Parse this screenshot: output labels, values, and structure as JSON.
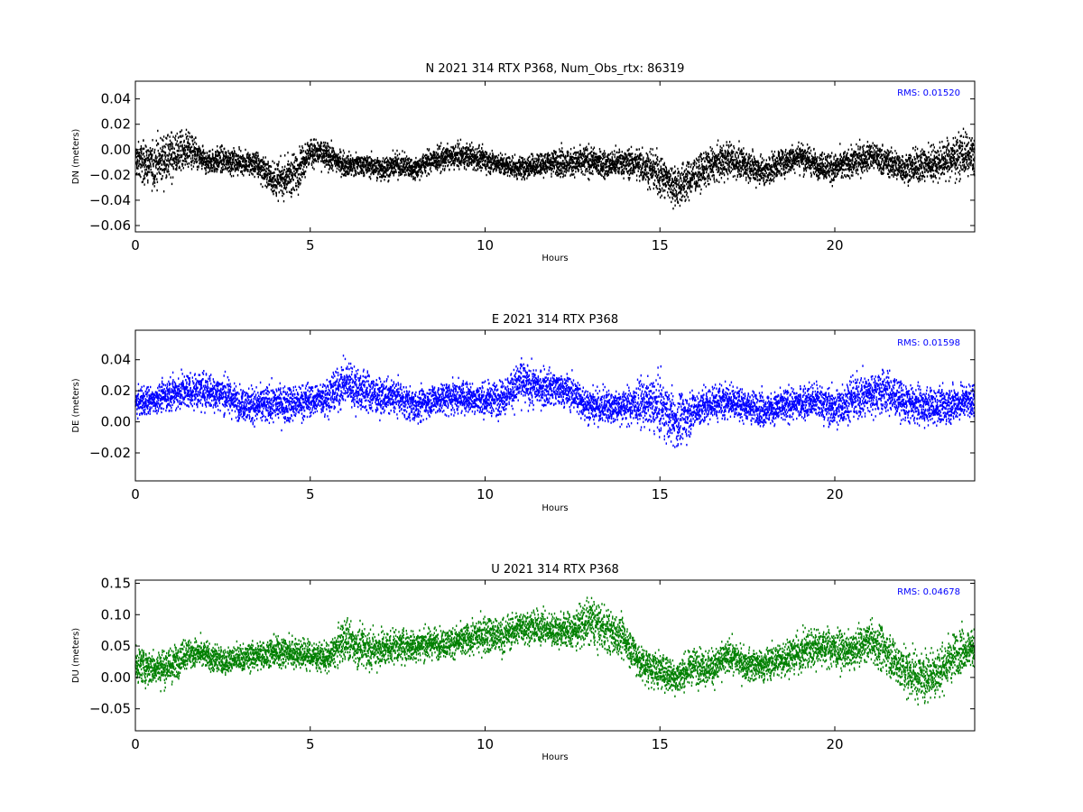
{
  "chart_data": [
    {
      "type": "scatter",
      "title": "N 2021 314 RTX  P368, Num_Obs_rtx: 86319",
      "xlabel": "Hours",
      "ylabel": "DN (meters)",
      "xlim": [
        0,
        24
      ],
      "ylim": [
        -0.065,
        0.054
      ],
      "xticks": [
        0,
        5,
        10,
        15,
        20
      ],
      "xtick_labels": [
        "0",
        "5",
        "10",
        "15",
        "20"
      ],
      "yticks": [
        -0.06,
        -0.04,
        -0.02,
        0.0,
        0.02,
        0.04
      ],
      "ytick_labels": [
        "−0.06",
        "−0.04",
        "−0.02",
        "0.00",
        "0.02",
        "0.04"
      ],
      "color": "#000000",
      "annotation": "RMS:  0.01520",
      "annotation_color": "#0000ff",
      "grid": false,
      "series": [
        {
          "x": [
            0,
            0.5,
            1,
            1.5,
            2,
            2.5,
            3,
            3.5,
            4,
            4.5,
            5,
            5.5,
            6,
            6.5,
            7,
            7.5,
            8,
            8.5,
            9,
            9.5,
            10,
            10.5,
            11,
            11.5,
            12,
            12.5,
            13,
            13.5,
            14,
            14.5,
            15,
            15.5,
            16,
            16.5,
            17,
            17.5,
            18,
            18.5,
            19,
            19.5,
            20,
            20.5,
            21,
            21.5,
            22,
            22.5,
            23,
            23.5,
            24
          ],
          "y": [
            -0.008,
            -0.012,
            -0.005,
            0.0,
            -0.01,
            -0.008,
            -0.01,
            -0.012,
            -0.025,
            -0.02,
            -0.002,
            -0.005,
            -0.012,
            -0.012,
            -0.015,
            -0.012,
            -0.015,
            -0.008,
            -0.006,
            -0.005,
            -0.008,
            -0.012,
            -0.015,
            -0.012,
            -0.01,
            -0.01,
            -0.01,
            -0.012,
            -0.01,
            -0.012,
            -0.02,
            -0.03,
            -0.02,
            -0.012,
            -0.008,
            -0.012,
            -0.018,
            -0.01,
            -0.005,
            -0.012,
            -0.015,
            -0.01,
            -0.005,
            -0.01,
            -0.015,
            -0.012,
            -0.01,
            -0.005,
            -0.005
          ],
          "spread": [
            0.012,
            0.015,
            0.016,
            0.012,
            0.008,
            0.009,
            0.008,
            0.009,
            0.012,
            0.014,
            0.01,
            0.009,
            0.008,
            0.008,
            0.008,
            0.008,
            0.008,
            0.008,
            0.008,
            0.008,
            0.008,
            0.008,
            0.008,
            0.008,
            0.009,
            0.01,
            0.01,
            0.009,
            0.009,
            0.012,
            0.015,
            0.015,
            0.012,
            0.012,
            0.012,
            0.01,
            0.01,
            0.01,
            0.01,
            0.009,
            0.011,
            0.01,
            0.01,
            0.01,
            0.01,
            0.012,
            0.012,
            0.016,
            0.014
          ]
        }
      ]
    },
    {
      "type": "scatter",
      "title": "E 2021 314 RTX  P368",
      "xlabel": "Hours",
      "ylabel": "DE (meters)",
      "xlim": [
        0,
        24
      ],
      "ylim": [
        -0.038,
        0.059
      ],
      "xticks": [
        0,
        5,
        10,
        15,
        20
      ],
      "xtick_labels": [
        "0",
        "5",
        "10",
        "15",
        "20"
      ],
      "yticks": [
        -0.02,
        0.0,
        0.02,
        0.04
      ],
      "ytick_labels": [
        "−0.02",
        "0.00",
        "0.02",
        "0.04"
      ],
      "color": "#0000ff",
      "annotation": "RMS:  0.01598",
      "annotation_color": "#0000ff",
      "grid": false,
      "series": [
        {
          "x": [
            0,
            0.5,
            1,
            1.5,
            2,
            2.5,
            3,
            3.5,
            4,
            4.5,
            5,
            5.5,
            6,
            6.5,
            7,
            7.5,
            8,
            8.5,
            9,
            9.5,
            10,
            10.5,
            11,
            11.5,
            12,
            12.5,
            13,
            13.5,
            14,
            14.5,
            15,
            15.5,
            16,
            16.5,
            17,
            17.5,
            18,
            18.5,
            19,
            19.5,
            20,
            20.5,
            21,
            21.5,
            22,
            22.5,
            23,
            23.5,
            24
          ],
          "y": [
            0.012,
            0.014,
            0.018,
            0.02,
            0.02,
            0.018,
            0.012,
            0.01,
            0.012,
            0.012,
            0.014,
            0.016,
            0.025,
            0.02,
            0.016,
            0.016,
            0.01,
            0.014,
            0.016,
            0.016,
            0.014,
            0.016,
            0.025,
            0.022,
            0.022,
            0.018,
            0.01,
            0.01,
            0.01,
            0.012,
            0.01,
            0.0,
            0.008,
            0.012,
            0.014,
            0.01,
            0.008,
            0.01,
            0.012,
            0.014,
            0.008,
            0.015,
            0.018,
            0.02,
            0.012,
            0.01,
            0.01,
            0.012,
            0.015
          ],
          "spread": [
            0.008,
            0.008,
            0.009,
            0.01,
            0.01,
            0.01,
            0.009,
            0.01,
            0.01,
            0.01,
            0.009,
            0.01,
            0.012,
            0.012,
            0.009,
            0.009,
            0.009,
            0.009,
            0.009,
            0.009,
            0.009,
            0.009,
            0.012,
            0.011,
            0.01,
            0.01,
            0.009,
            0.009,
            0.01,
            0.012,
            0.016,
            0.014,
            0.012,
            0.01,
            0.01,
            0.009,
            0.009,
            0.009,
            0.009,
            0.01,
            0.011,
            0.012,
            0.014,
            0.012,
            0.01,
            0.01,
            0.01,
            0.01,
            0.01
          ]
        }
      ]
    },
    {
      "type": "scatter",
      "title": "U 2021 314 RTX  P368",
      "xlabel": "Hours",
      "ylabel": "DU (meters)",
      "xlim": [
        0,
        24
      ],
      "ylim": [
        -0.085,
        0.155
      ],
      "xticks": [
        0,
        5,
        10,
        15,
        20
      ],
      "xtick_labels": [
        "0",
        "5",
        "10",
        "15",
        "20"
      ],
      "yticks": [
        -0.05,
        0.0,
        0.05,
        0.1,
        0.15
      ],
      "ytick_labels": [
        "−0.05",
        "0.00",
        "0.05",
        "0.10",
        "0.15"
      ],
      "color": "#008000",
      "annotation": "RMS:  0.04678",
      "annotation_color": "#0000ff",
      "grid": false,
      "series": [
        {
          "x": [
            0,
            0.5,
            1,
            1.5,
            2,
            2.5,
            3,
            3.5,
            4,
            4.5,
            5,
            5.5,
            6,
            6.5,
            7,
            7.5,
            8,
            8.5,
            9,
            9.5,
            10,
            10.5,
            11,
            11.5,
            12,
            12.5,
            13,
            13.5,
            14,
            14.5,
            15,
            15.5,
            16,
            16.5,
            17,
            17.5,
            18,
            18.5,
            19,
            19.5,
            20,
            20.5,
            21,
            21.5,
            22,
            22.5,
            23,
            23.5,
            24
          ],
          "y": [
            0.02,
            0.015,
            0.018,
            0.04,
            0.035,
            0.025,
            0.03,
            0.035,
            0.04,
            0.04,
            0.035,
            0.03,
            0.06,
            0.045,
            0.045,
            0.05,
            0.05,
            0.055,
            0.055,
            0.06,
            0.07,
            0.065,
            0.08,
            0.08,
            0.075,
            0.075,
            0.09,
            0.075,
            0.06,
            0.02,
            0.01,
            0.0,
            0.02,
            0.015,
            0.035,
            0.02,
            0.02,
            0.03,
            0.04,
            0.05,
            0.045,
            0.04,
            0.06,
            0.04,
            0.01,
            0.0,
            0.01,
            0.04,
            0.05
          ],
          "spread": [
            0.025,
            0.025,
            0.025,
            0.022,
            0.02,
            0.018,
            0.018,
            0.02,
            0.022,
            0.022,
            0.02,
            0.02,
            0.03,
            0.028,
            0.024,
            0.022,
            0.022,
            0.02,
            0.02,
            0.022,
            0.025,
            0.025,
            0.022,
            0.022,
            0.022,
            0.025,
            0.032,
            0.03,
            0.028,
            0.026,
            0.024,
            0.024,
            0.024,
            0.024,
            0.022,
            0.022,
            0.022,
            0.024,
            0.026,
            0.026,
            0.026,
            0.024,
            0.026,
            0.03,
            0.034,
            0.036,
            0.034,
            0.03,
            0.025
          ]
        }
      ]
    }
  ]
}
